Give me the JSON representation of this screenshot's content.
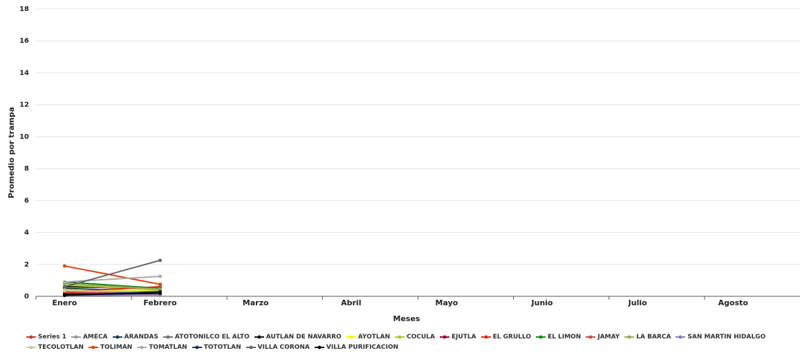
{
  "chart_data": {
    "type": "line",
    "x_label": "Meses",
    "y_label": "Promedio por trampa",
    "categories": [
      "Enero",
      "Febrero",
      "Marzo",
      "Abril",
      "Mayo",
      "Junio",
      "Julio",
      "Agosto"
    ],
    "ylim": [
      0,
      18
    ],
    "yticks": [
      0,
      2,
      4,
      6,
      8,
      10,
      12,
      14,
      16,
      18
    ],
    "grid": true,
    "series": [
      {
        "name": "Series 1",
        "color": "#cc3333",
        "values": [
          0.1,
          0.1,
          null,
          null,
          null,
          null,
          null,
          null
        ]
      },
      {
        "name": "AMECA",
        "color": "#999999",
        "values": [
          0.3,
          0.2,
          null,
          null,
          null,
          null,
          null,
          null
        ]
      },
      {
        "name": "ARANDAS",
        "color": "#1b3a4b",
        "values": [
          0.5,
          0.3,
          null,
          null,
          null,
          null,
          null,
          null
        ]
      },
      {
        "name": "ATOTONILCO EL ALTO",
        "color": "#707070",
        "values": [
          0.2,
          0.25,
          null,
          null,
          null,
          null,
          null,
          null
        ]
      },
      {
        "name": "AUTLAN DE NAVARRO",
        "color": "#111111",
        "values": [
          0.6,
          0.5,
          null,
          null,
          null,
          null,
          null,
          null
        ]
      },
      {
        "name": "AYOTLAN",
        "color": "#f5f000",
        "values": [
          0.4,
          0.35,
          null,
          null,
          null,
          null,
          null,
          null
        ]
      },
      {
        "name": "COCULA",
        "color": "#a8c832",
        "values": [
          0.7,
          0.4,
          null,
          null,
          null,
          null,
          null,
          null
        ]
      },
      {
        "name": "EJUTLA",
        "color": "#990033",
        "values": [
          0.15,
          0.2,
          null,
          null,
          null,
          null,
          null,
          null
        ]
      },
      {
        "name": "EL GRULLO",
        "color": "#cc3311",
        "values": [
          0.3,
          0.6,
          null,
          null,
          null,
          null,
          null,
          null
        ]
      },
      {
        "name": "EL LIMON",
        "color": "#118811",
        "values": [
          0.9,
          0.5,
          null,
          null,
          null,
          null,
          null,
          null
        ]
      },
      {
        "name": "JAMAY",
        "color": "#d04848",
        "values": [
          0.25,
          0.15,
          null,
          null,
          null,
          null,
          null,
          null
        ]
      },
      {
        "name": "LA BARCA",
        "color": "#99aa55",
        "values": [
          0.8,
          0.45,
          null,
          null,
          null,
          null,
          null,
          null
        ]
      },
      {
        "name": "SAN MARTIN HIDALGO",
        "color": "#8877bb",
        "values": [
          0.05,
          0.1,
          null,
          null,
          null,
          null,
          null,
          null
        ]
      },
      {
        "name": "TECOLOTLAN",
        "color": "#c8c8a0",
        "values": [
          0.35,
          0.3,
          null,
          null,
          null,
          null,
          null,
          null
        ]
      },
      {
        "name": "TOLIMAN",
        "color": "#dd4411",
        "values": [
          1.9,
          0.75,
          null,
          null,
          null,
          null,
          null,
          null
        ]
      },
      {
        "name": "TOMATLAN",
        "color": "#aaaaaa",
        "values": [
          0.9,
          1.25,
          null,
          null,
          null,
          null,
          null,
          null
        ]
      },
      {
        "name": "TOTOTLAN",
        "color": "#113355",
        "values": [
          0.05,
          0.3,
          null,
          null,
          null,
          null,
          null,
          null
        ]
      },
      {
        "name": "VILLA CORONA",
        "color": "#666666",
        "values": [
          0.6,
          2.25,
          null,
          null,
          null,
          null,
          null,
          null
        ]
      },
      {
        "name": "VILLA PURIFICACION",
        "color": "#000000",
        "values": [
          0.1,
          0.2,
          null,
          null,
          null,
          null,
          null,
          null
        ]
      }
    ]
  }
}
